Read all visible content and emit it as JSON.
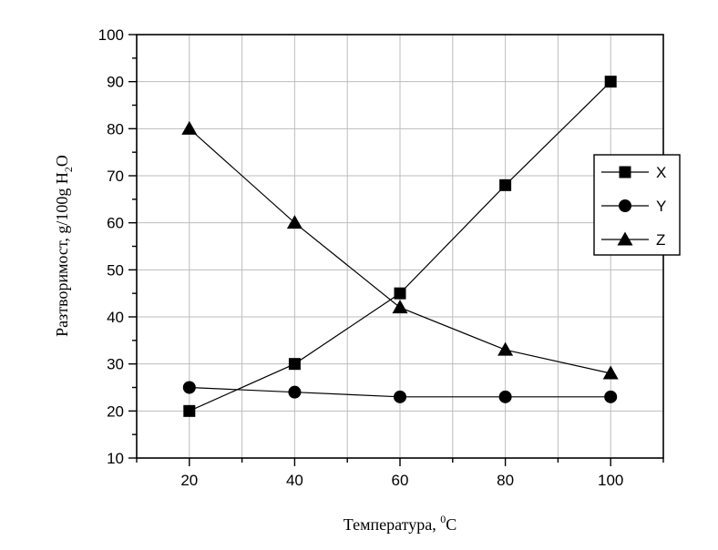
{
  "chart_data": {
    "type": "line",
    "x": [
      20,
      40,
      60,
      80,
      100
    ],
    "series": [
      {
        "name": "X",
        "marker": "square",
        "values": [
          20,
          30,
          45,
          68,
          90
        ]
      },
      {
        "name": "Y",
        "marker": "circle",
        "values": [
          25,
          24,
          23,
          23,
          23
        ]
      },
      {
        "name": "Z",
        "marker": "triangle",
        "values": [
          80,
          60,
          42,
          33,
          28
        ]
      }
    ],
    "xticks": [
      "20",
      "40",
      "60",
      "80",
      "100"
    ],
    "yticks": [
      "10",
      "20",
      "30",
      "40",
      "50",
      "60",
      "70",
      "80",
      "90",
      "100"
    ],
    "xlim": [
      10,
      110
    ],
    "ylim": [
      10,
      100
    ],
    "xlabel": {
      "main": "Температура, ",
      "sup": "0",
      "unit": "C"
    },
    "ylabel": {
      "main": "Разтворимост, g/100g H",
      "sub": "2",
      "end": "O"
    },
    "grid": true,
    "legend_position": "right",
    "colors": {
      "line": "#000000",
      "grid": "#bdbdbd",
      "background": "#ffffff"
    }
  }
}
